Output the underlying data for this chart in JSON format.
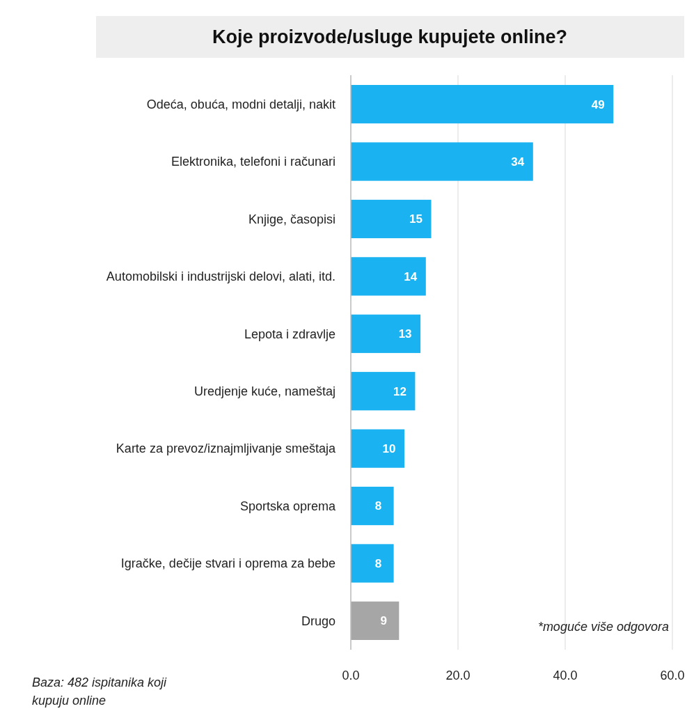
{
  "chart_data": {
    "type": "bar",
    "orientation": "horizontal",
    "title": "Koje proizvode/usluge kupujete online?",
    "categories": [
      "Odeća, obuća, modni detalji, nakit",
      "Elektronika, telefoni i računari",
      "Knjige, časopisi",
      "Automobilski i industrijski delovi, alati, itd.",
      "Lepota i zdravlje",
      "Uredjenje kuće, nameštaj",
      "Karte za prevoz/iznajmljivanje smeštaja",
      "Sportska oprema",
      "Igračke, dečije stvari i oprema za bebe",
      "Drugo"
    ],
    "values": [
      49,
      34,
      15,
      14,
      13,
      12,
      10,
      8,
      8,
      9
    ],
    "colors": [
      "#1ab2f0",
      "#1ab2f0",
      "#1ab2f0",
      "#1ab2f0",
      "#1ab2f0",
      "#1ab2f0",
      "#1ab2f0",
      "#1ab2f0",
      "#1ab2f0",
      "#a6a6a6"
    ],
    "data_labels": true,
    "xlim": [
      0,
      60
    ],
    "xticks": [
      {
        "value": 0,
        "label": "0.0"
      },
      {
        "value": 20,
        "label": "20.0"
      },
      {
        "value": 40,
        "label": "40.0"
      },
      {
        "value": 60,
        "label": "60.0"
      }
    ],
    "grid": "x",
    "annotations": [
      "*moguće više odgovora",
      "Baza: 482 ispitanika koji kupuju online"
    ]
  }
}
